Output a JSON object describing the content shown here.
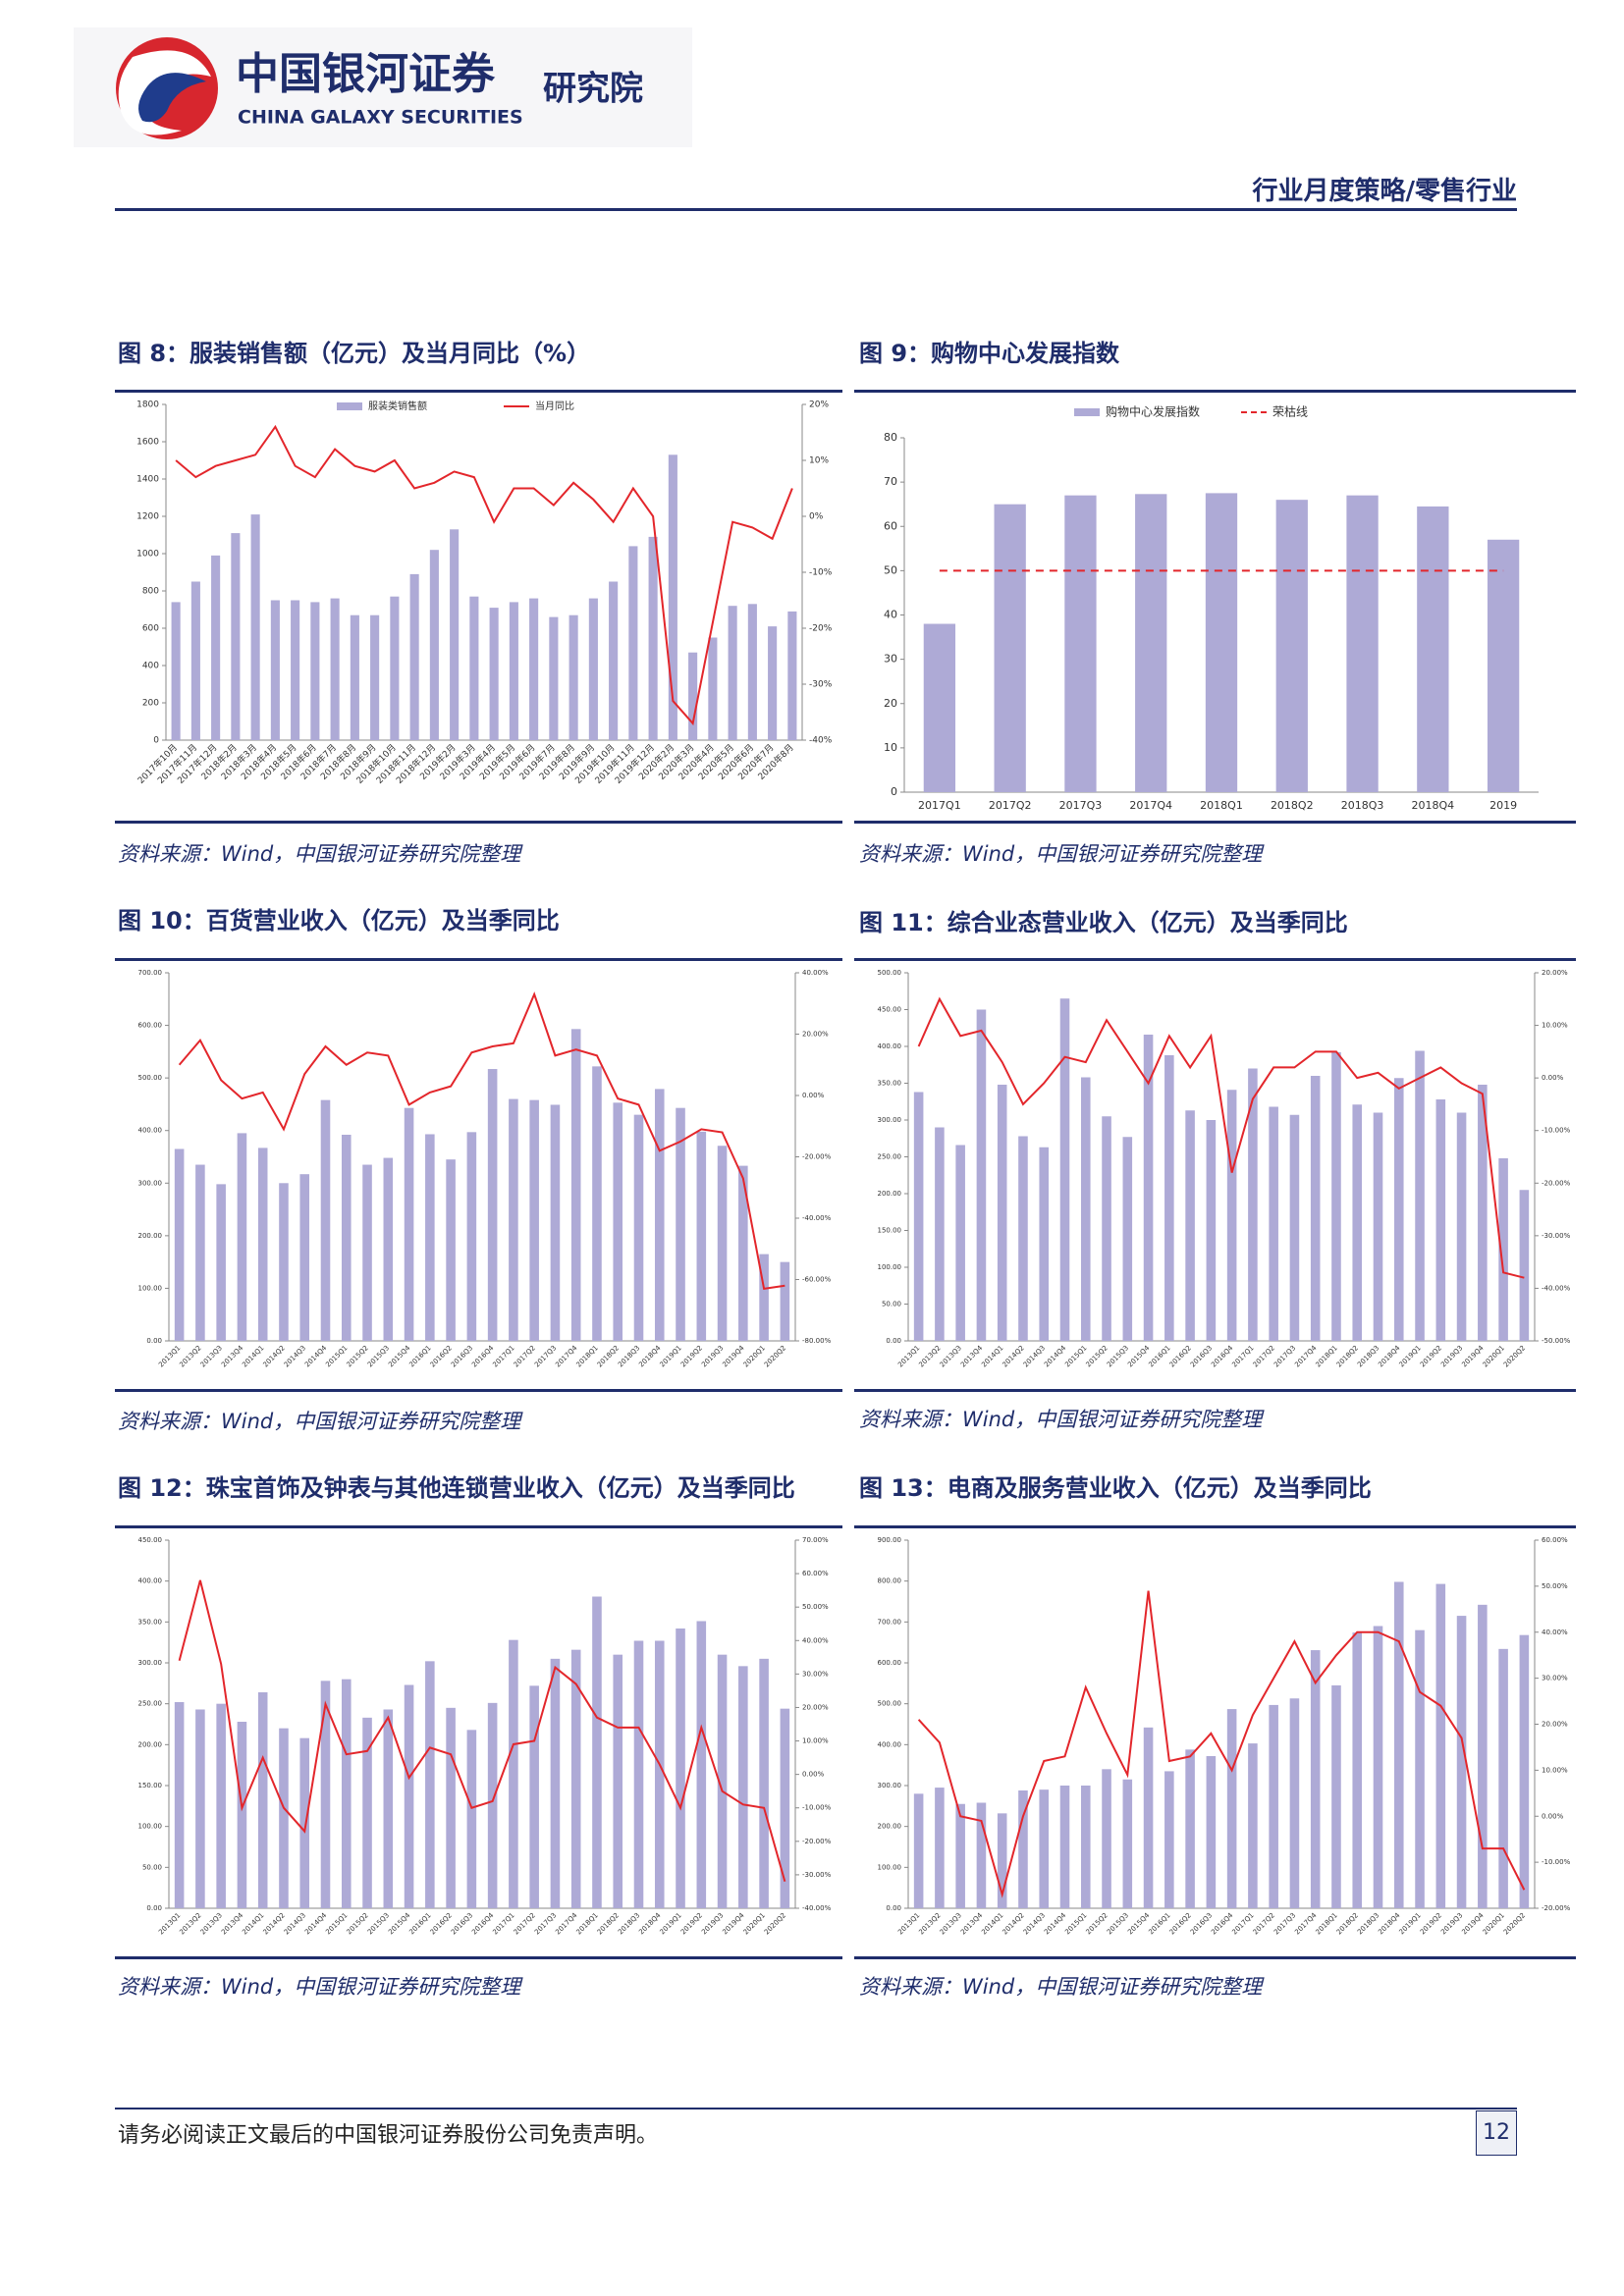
{
  "header": {
    "logo_cn": "中国银河证券",
    "logo_en": "CHINA GALAXY SECURITIES",
    "institute": "研究院",
    "section": "行业月度策略/零售行业"
  },
  "footer": {
    "disclaimer": "请务必阅读正文最后的中国银河证券股份公司免责声明。",
    "page": "12"
  },
  "chart_data": [
    {
      "type": "combo",
      "title": "图 8：服装销售额（亿元）及当月同比（%）",
      "source": "资料来源：Wind，中国银河证券研究院整理",
      "legend": true,
      "categories": [
        "2017年10月",
        "2017年11月",
        "2017年12月",
        "2018年2月",
        "2018年3月",
        "2018年4月",
        "2018年5月",
        "2018年6月",
        "2018年7月",
        "2018年8月",
        "2018年9月",
        "2018年10月",
        "2018年11月",
        "2018年12月",
        "2019年2月",
        "2019年3月",
        "2019年4月",
        "2019年5月",
        "2019年6月",
        "2019年7月",
        "2019年8月",
        "2019年9月",
        "2019年10月",
        "2019年11月",
        "2019年12月",
        "2020年2月",
        "2020年3月",
        "2020年4月",
        "2020年5月",
        "2020年6月",
        "2020年7月",
        "2020年8月"
      ],
      "series": [
        {
          "name": "服装类销售额",
          "type": "bar",
          "color": "#aeaad6",
          "values": [
            740,
            850,
            990,
            1110,
            1210,
            750,
            750,
            740,
            760,
            670,
            670,
            770,
            890,
            1020,
            1130,
            770,
            710,
            740,
            760,
            660,
            670,
            760,
            850,
            1040,
            1090,
            1530,
            470,
            550,
            720,
            730,
            610,
            690
          ]
        },
        {
          "name": "当月同比",
          "type": "line",
          "axis": "y2",
          "color": "#e3262b",
          "values": [
            10,
            7,
            9,
            10,
            11,
            16,
            9,
            7,
            12,
            9,
            8,
            10,
            5,
            6,
            8,
            7,
            -1,
            5,
            5,
            2,
            6,
            3,
            -1,
            5,
            0,
            -33,
            -37,
            -19,
            -1,
            -2,
            -4,
            5
          ]
        }
      ],
      "ylim": [
        0,
        1800
      ],
      "yticks": [
        0,
        200,
        400,
        600,
        800,
        1000,
        1200,
        1400,
        1600,
        1800
      ],
      "y2lim": [
        -40,
        20
      ],
      "y2ticks": [
        {
          "value": -40,
          "label": "-40%"
        },
        {
          "value": -30,
          "label": "-30%"
        },
        {
          "value": -20,
          "label": "-20%"
        },
        {
          "value": -10,
          "label": "-10%"
        },
        {
          "value": 0,
          "label": "0%"
        },
        {
          "value": 10,
          "label": "10%"
        },
        {
          "value": 20,
          "label": "20%"
        }
      ]
    },
    {
      "type": "combo",
      "title": "图 9：购物中心发展指数",
      "source": "资料来源：Wind，中国银河证券研究院整理",
      "legend": true,
      "categories": [
        "2017Q1",
        "2017Q2",
        "2017Q3",
        "2017Q4",
        "2018Q1",
        "2018Q2",
        "2018Q3",
        "2018Q4",
        "2019"
      ],
      "series": [
        {
          "name": "购物中心发展指数",
          "type": "bar",
          "color": "#aeaad6",
          "values": [
            38,
            65,
            67,
            67.3,
            67.5,
            66,
            67,
            64.5,
            57
          ]
        },
        {
          "name": "荣枯线",
          "type": "line",
          "dashed": true,
          "color": "#e3262b",
          "values": [
            50,
            50,
            50,
            50,
            50,
            50,
            50,
            50,
            50
          ]
        }
      ],
      "ylim": [
        0,
        80
      ],
      "yticks": [
        0,
        10,
        20,
        30,
        40,
        50,
        60,
        70,
        80
      ]
    },
    {
      "type": "combo",
      "title": "图 10：百货营业收入（亿元）及当季同比",
      "source": "资料来源：Wind，中国银河证券研究院整理",
      "categories": [
        "2013Q1",
        "2013Q2",
        "2013Q3",
        "2013Q4",
        "2014Q1",
        "2014Q2",
        "2014Q3",
        "2014Q4",
        "2015Q1",
        "2015Q2",
        "2015Q3",
        "2015Q4",
        "2016Q1",
        "2016Q2",
        "2016Q3",
        "2016Q4",
        "2017Q1",
        "2017Q2",
        "2017Q3",
        "2017Q4",
        "2018Q1",
        "2018Q2",
        "2018Q3",
        "2018Q4",
        "2019Q1",
        "2019Q2",
        "2019Q3",
        "2019Q4",
        "2020Q1",
        "2020Q2"
      ],
      "series": [
        {
          "type": "bar",
          "color": "#aeaad6",
          "values": [
            365,
            335,
            298,
            395,
            367,
            300,
            317,
            458,
            392,
            335,
            348,
            443,
            393,
            345,
            397,
            517,
            460,
            458,
            449,
            593,
            522,
            453,
            430,
            479,
            443,
            398,
            371,
            333,
            165,
            150
          ]
        },
        {
          "type": "line",
          "axis": "y2",
          "color": "#e3262b",
          "values": [
            10,
            18,
            5,
            -1,
            1,
            -11,
            7,
            16,
            10,
            14,
            13,
            -3,
            1,
            3,
            14,
            16,
            17,
            33,
            13,
            15,
            13,
            -1,
            -3,
            -18,
            -15,
            -11,
            -12,
            -27,
            -63,
            -62
          ]
        }
      ],
      "ylim": [
        0,
        700
      ],
      "yticks": [
        {
          "value": 0,
          "label": "0.00"
        },
        {
          "value": 100,
          "label": "100.00"
        },
        {
          "value": 200,
          "label": "200.00"
        },
        {
          "value": 300,
          "label": "300.00"
        },
        {
          "value": 400,
          "label": "400.00"
        },
        {
          "value": 500,
          "label": "500.00"
        },
        {
          "value": 600,
          "label": "600.00"
        },
        {
          "value": 700,
          "label": "700.00"
        }
      ],
      "y2lim": [
        -80,
        40
      ],
      "y2ticks": [
        {
          "value": -80,
          "label": "-80.00%"
        },
        {
          "value": -60,
          "label": "-60.00%"
        },
        {
          "value": -40,
          "label": "-40.00%"
        },
        {
          "value": -20,
          "label": "-20.00%"
        },
        {
          "value": 0,
          "label": "0.00%"
        },
        {
          "value": 20,
          "label": "20.00%"
        },
        {
          "value": 40,
          "label": "40.00%"
        }
      ]
    },
    {
      "type": "combo",
      "title": "图 11：综合业态营业收入（亿元）及当季同比",
      "source": "资料来源：Wind，中国银河证券研究院整理",
      "categories": [
        "2013Q1",
        "2013Q2",
        "2013Q3",
        "2013Q4",
        "2014Q1",
        "2014Q2",
        "2014Q3",
        "2014Q4",
        "2015Q1",
        "2015Q2",
        "2015Q3",
        "2015Q4",
        "2016Q1",
        "2016Q2",
        "2016Q3",
        "2016Q4",
        "2017Q1",
        "2017Q2",
        "2017Q3",
        "2017Q4",
        "2018Q1",
        "2018Q2",
        "2018Q3",
        "2018Q4",
        "2019Q1",
        "2019Q2",
        "2019Q3",
        "2019Q4",
        "2020Q1",
        "2020Q2"
      ],
      "series": [
        {
          "type": "bar",
          "color": "#aeaad6",
          "values": [
            338,
            290,
            266,
            450,
            348,
            278,
            263,
            465,
            358,
            305,
            277,
            416,
            388,
            313,
            300,
            341,
            370,
            318,
            307,
            360,
            392,
            321,
            310,
            357,
            394,
            328,
            310,
            348,
            248,
            205
          ]
        },
        {
          "type": "line",
          "axis": "y2",
          "color": "#e3262b",
          "values": [
            6,
            15,
            8,
            9,
            3,
            -5,
            -1,
            4,
            3,
            11,
            5,
            -1,
            8,
            2,
            8,
            -18,
            -4,
            2,
            2,
            5,
            5,
            0,
            1,
            -2,
            0,
            2,
            -1,
            -3,
            -37,
            -38
          ]
        }
      ],
      "ylim": [
        0,
        500
      ],
      "yticks": [
        {
          "value": 0,
          "label": "0.00"
        },
        {
          "value": 50,
          "label": "50.00"
        },
        {
          "value": 100,
          "label": "100.00"
        },
        {
          "value": 150,
          "label": "150.00"
        },
        {
          "value": 200,
          "label": "200.00"
        },
        {
          "value": 250,
          "label": "250.00"
        },
        {
          "value": 300,
          "label": "300.00"
        },
        {
          "value": 350,
          "label": "350.00"
        },
        {
          "value": 400,
          "label": "400.00"
        },
        {
          "value": 450,
          "label": "450.00"
        },
        {
          "value": 500,
          "label": "500.00"
        }
      ],
      "y2lim": [
        -50,
        20
      ],
      "y2ticks": [
        {
          "value": -50,
          "label": "-50.00%"
        },
        {
          "value": -40,
          "label": "-40.00%"
        },
        {
          "value": -30,
          "label": "-30.00%"
        },
        {
          "value": -20,
          "label": "-20.00%"
        },
        {
          "value": -10,
          "label": "-10.00%"
        },
        {
          "value": 0,
          "label": "0.00%"
        },
        {
          "value": 10,
          "label": "10.00%"
        },
        {
          "value": 20,
          "label": "20.00%"
        }
      ]
    },
    {
      "type": "combo",
      "title": "图 12：珠宝首饰及钟表与其他连锁营业收入（亿元）及当季同比",
      "source": "资料来源：Wind，中国银河证券研究院整理",
      "categories": [
        "2013Q1",
        "2013Q2",
        "2013Q3",
        "2013Q4",
        "2014Q1",
        "2014Q2",
        "2014Q3",
        "2014Q4",
        "2015Q1",
        "2015Q2",
        "2015Q3",
        "2015Q4",
        "2016Q1",
        "2016Q2",
        "2016Q3",
        "2016Q4",
        "2017Q1",
        "2017Q2",
        "2017Q3",
        "2017Q4",
        "2018Q1",
        "2018Q2",
        "2018Q3",
        "2018Q4",
        "2019Q1",
        "2019Q2",
        "2019Q3",
        "2019Q4",
        "2020Q1",
        "2020Q2"
      ],
      "series": [
        {
          "type": "bar",
          "color": "#aeaad6",
          "values": [
            252,
            243,
            250,
            228,
            264,
            220,
            208,
            278,
            280,
            233,
            243,
            273,
            302,
            245,
            218,
            251,
            328,
            272,
            305,
            316,
            381,
            310,
            327,
            327,
            342,
            351,
            310,
            296,
            305,
            244
          ]
        },
        {
          "type": "line",
          "axis": "y2",
          "color": "#e3262b",
          "values": [
            34,
            58,
            33,
            -10,
            5,
            -10,
            -17,
            21,
            6,
            7,
            17,
            -1,
            8,
            6,
            -10,
            -8,
            9,
            10,
            32,
            27,
            17,
            14,
            14,
            3,
            -10,
            14,
            -5,
            -9,
            -10,
            -32
          ]
        }
      ],
      "ylim": [
        0,
        450
      ],
      "yticks": [
        {
          "value": 0,
          "label": "0.00"
        },
        {
          "value": 50,
          "label": "50.00"
        },
        {
          "value": 100,
          "label": "100.00"
        },
        {
          "value": 150,
          "label": "150.00"
        },
        {
          "value": 200,
          "label": "200.00"
        },
        {
          "value": 250,
          "label": "250.00"
        },
        {
          "value": 300,
          "label": "300.00"
        },
        {
          "value": 350,
          "label": "350.00"
        },
        {
          "value": 400,
          "label": "400.00"
        },
        {
          "value": 450,
          "label": "450.00"
        }
      ],
      "y2lim": [
        -40,
        70
      ],
      "y2ticks": [
        {
          "value": -40,
          "label": "-40.00%"
        },
        {
          "value": -30,
          "label": "-30.00%"
        },
        {
          "value": -20,
          "label": "-20.00%"
        },
        {
          "value": -10,
          "label": "-10.00%"
        },
        {
          "value": 0,
          "label": "0.00%"
        },
        {
          "value": 10,
          "label": "10.00%"
        },
        {
          "value": 20,
          "label": "20.00%"
        },
        {
          "value": 30,
          "label": "30.00%"
        },
        {
          "value": 40,
          "label": "40.00%"
        },
        {
          "value": 50,
          "label": "50.00%"
        },
        {
          "value": 60,
          "label": "60.00%"
        },
        {
          "value": 70,
          "label": "70.00%"
        }
      ]
    },
    {
      "type": "combo",
      "title": "图 13：电商及服务营业收入（亿元）及当季同比",
      "source": "资料来源：Wind，中国银河证券研究院整理",
      "categories": [
        "2013Q1",
        "2013Q2",
        "2013Q3",
        "2013Q4",
        "2014Q1",
        "2014Q2",
        "2014Q3",
        "2014Q4",
        "2015Q1",
        "2015Q2",
        "2015Q3",
        "2015Q4",
        "2016Q1",
        "2016Q2",
        "2016Q3",
        "2016Q4",
        "2017Q1",
        "2017Q2",
        "2017Q3",
        "2017Q4",
        "2018Q1",
        "2018Q2",
        "2018Q3",
        "2018Q4",
        "2019Q1",
        "2019Q2",
        "2019Q3",
        "2019Q4",
        "2020Q1",
        "2020Q2"
      ],
      "series": [
        {
          "type": "bar",
          "color": "#aeaad6",
          "values": [
            280,
            295,
            255,
            258,
            232,
            288,
            290,
            300,
            300,
            340,
            315,
            442,
            335,
            388,
            372,
            487,
            403,
            497,
            513,
            631,
            545,
            674,
            690,
            798,
            680,
            793,
            715,
            742,
            634,
            668
          ]
        },
        {
          "type": "line",
          "axis": "y2",
          "color": "#e3262b",
          "values": [
            21,
            16,
            0,
            -1,
            -17,
            0,
            12,
            13,
            28,
            18,
            9,
            49,
            12,
            13,
            18,
            10,
            22,
            30,
            38,
            29,
            35,
            40,
            40,
            38,
            27,
            24,
            17,
            -7,
            -7,
            -16
          ]
        }
      ],
      "ylim": [
        0,
        900
      ],
      "yticks": [
        {
          "value": 0,
          "label": "0.00"
        },
        {
          "value": 100,
          "label": "100.00"
        },
        {
          "value": 200,
          "label": "200.00"
        },
        {
          "value": 300,
          "label": "300.00"
        },
        {
          "value": 400,
          "label": "400.00"
        },
        {
          "value": 500,
          "label": "500.00"
        },
        {
          "value": 600,
          "label": "600.00"
        },
        {
          "value": 700,
          "label": "700.00"
        },
        {
          "value": 800,
          "label": "800.00"
        },
        {
          "value": 900,
          "label": "900.00"
        }
      ],
      "y2lim": [
        -20,
        60
      ],
      "y2ticks": [
        {
          "value": -20,
          "label": "-20.00%"
        },
        {
          "value": -10,
          "label": "-10.00%"
        },
        {
          "value": 0,
          "label": "0.00%"
        },
        {
          "value": 10,
          "label": "10.00%"
        },
        {
          "value": 20,
          "label": "20.00%"
        },
        {
          "value": 30,
          "label": "30.00%"
        },
        {
          "value": 40,
          "label": "40.00%"
        },
        {
          "value": 50,
          "label": "50.00%"
        },
        {
          "value": 60,
          "label": "60.00%"
        }
      ]
    }
  ]
}
